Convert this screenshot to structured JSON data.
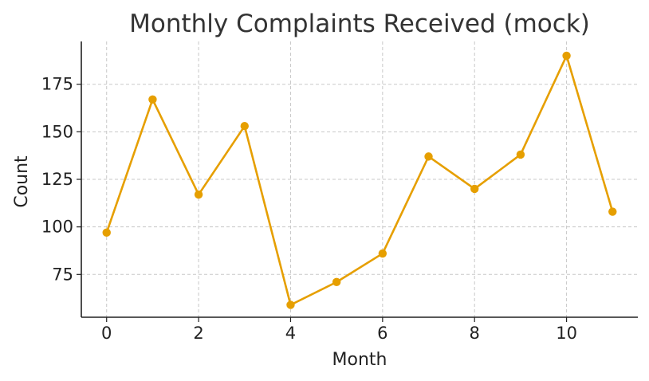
{
  "chart_data": {
    "type": "line",
    "title": "Monthly Complaints Received (mock)",
    "xlabel": "Month",
    "ylabel": "Count",
    "x": [
      0,
      1,
      2,
      3,
      4,
      5,
      6,
      7,
      8,
      9,
      10,
      11
    ],
    "series": [
      {
        "values": [
          97,
          167,
          117,
          153,
          59,
          71,
          86,
          137,
          120,
          138,
          190,
          108
        ],
        "color": "#E69F00"
      }
    ],
    "xticks": [
      0,
      2,
      4,
      6,
      8,
      10
    ],
    "yticks": [
      75,
      100,
      125,
      150,
      175
    ],
    "xlim": [
      -0.55,
      11.55
    ],
    "ylim": [
      52.5,
      197.5
    ],
    "grid": true,
    "legend": "none"
  }
}
